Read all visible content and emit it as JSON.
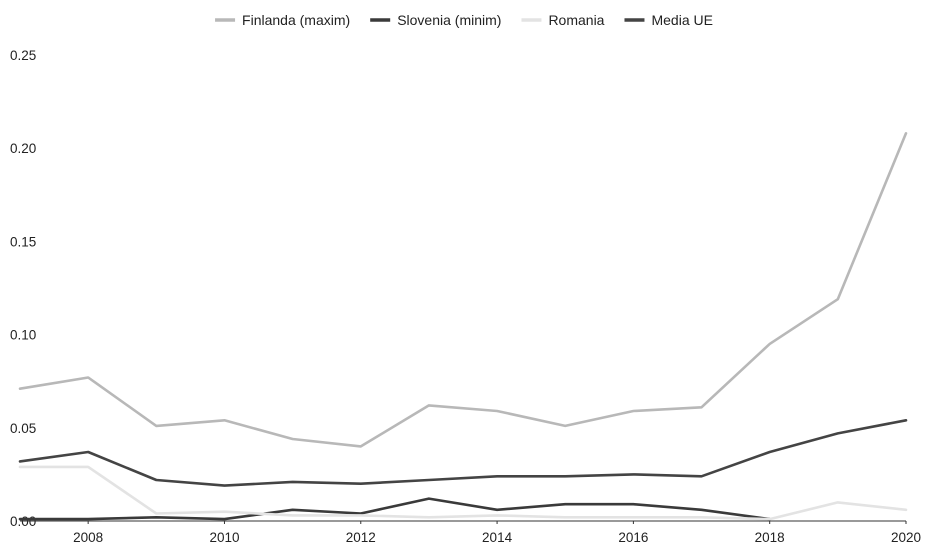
{
  "chart_data": {
    "type": "line",
    "title": "",
    "xlabel": "",
    "ylabel": "",
    "x": [
      2007,
      2008,
      2009,
      2010,
      2011,
      2012,
      2013,
      2014,
      2015,
      2016,
      2017,
      2018,
      2019,
      2020
    ],
    "xticks": [
      "2008",
      "2010",
      "2012",
      "2014",
      "2016",
      "2018",
      "2020"
    ],
    "yticks": [
      "0.00",
      "0.05",
      "0.10",
      "0.15",
      "0.20",
      "0.25"
    ],
    "xlim": [
      2007,
      2020
    ],
    "ylim": [
      0,
      0.25
    ],
    "grid": false,
    "legend": "top",
    "series": [
      {
        "name": "Finlanda (maxim)",
        "color": "#b8b8b8",
        "values": [
          0.071,
          0.077,
          0.051,
          0.054,
          0.044,
          0.04,
          0.062,
          0.059,
          0.051,
          0.059,
          0.061,
          0.095,
          0.119,
          0.208
        ]
      },
      {
        "name": "Slovenia (minim)",
        "color": "#3a3a3a",
        "values": [
          0.001,
          0.001,
          0.002,
          0.001,
          0.006,
          0.004,
          0.012,
          0.006,
          0.009,
          0.009,
          0.006,
          0.001,
          null,
          null
        ]
      },
      {
        "name": "Romania",
        "color": "#e3e3e3",
        "values": [
          0.029,
          0.029,
          0.004,
          0.005,
          0.003,
          0.003,
          0.002,
          0.003,
          0.002,
          0.002,
          0.002,
          0.001,
          0.01,
          0.006
        ]
      },
      {
        "name": "Media UE",
        "color": "#444444",
        "values": [
          0.032,
          0.037,
          0.022,
          0.019,
          0.021,
          0.02,
          0.022,
          0.024,
          0.024,
          0.025,
          0.024,
          0.037,
          0.047,
          0.054
        ]
      }
    ]
  }
}
